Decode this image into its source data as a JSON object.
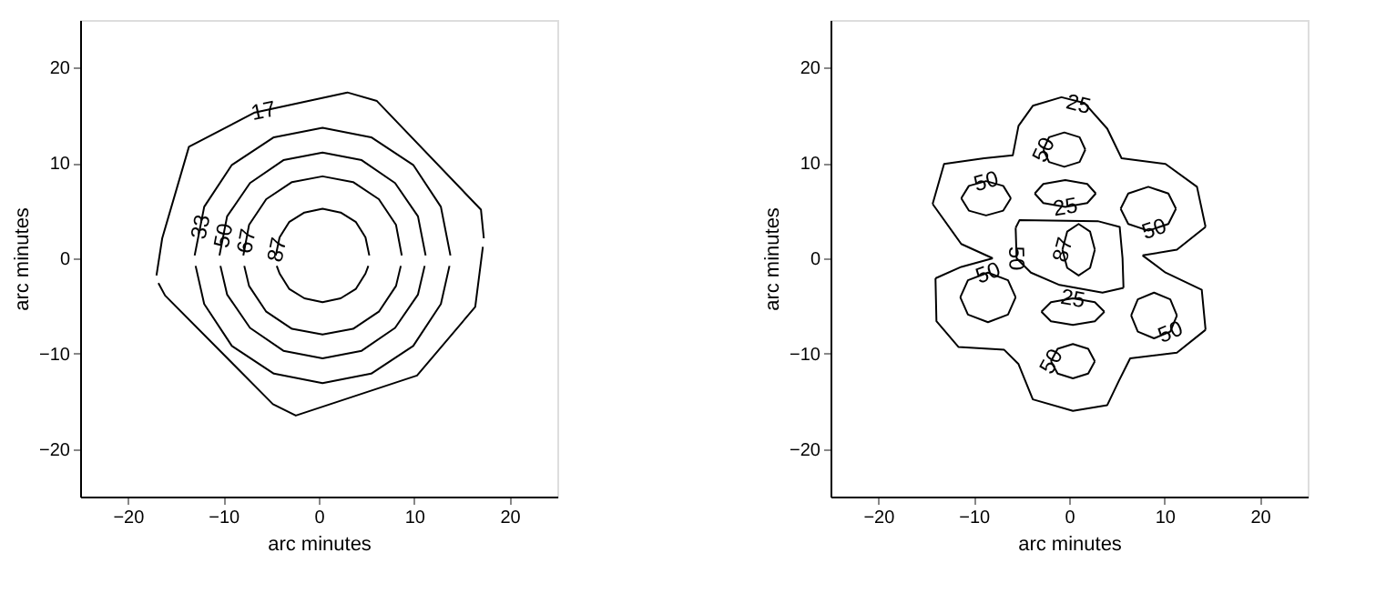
{
  "chart_data": [
    {
      "type": "line",
      "xlabel": "arc minutes",
      "ylabel": "arc minutes",
      "xlim": [
        -25,
        25
      ],
      "ylim": [
        -25,
        25
      ],
      "xticks": [
        -20,
        -10,
        0,
        10,
        20
      ],
      "yticks": [
        -20,
        -10,
        0,
        10,
        20
      ],
      "series": [
        {
          "color": "#000000",
          "x": [
            -17.0,
            -16.4,
            -13.6,
            -6.7,
            3.0,
            6.1,
            17.0,
            17.3
          ],
          "values": [
            -1.8,
            2.1,
            11.7,
            15.3,
            17.4,
            16.5,
            5.1,
            2.1
          ]
        },
        {
          "color": "#000000",
          "x": [
            -16.8,
            -16.1,
            -4.8,
            -2.4,
            10.3,
            16.4,
            17.2
          ],
          "values": [
            -2.6,
            -3.9,
            -15.3,
            -16.5,
            -12.3,
            -5.1,
            1.2
          ]
        },
        {
          "color": "#000000",
          "x": [
            -13.0,
            -12.0,
            -9.1,
            -4.7,
            0.4,
            5.5,
            9.9,
            12.8,
            13.8
          ],
          "values": [
            0.3,
            5.4,
            9.8,
            12.7,
            13.7,
            12.7,
            9.8,
            5.4,
            0.3
          ]
        },
        {
          "color": "#000000",
          "x": [
            -12.9,
            -12.0,
            -9.1,
            -4.7,
            0.4,
            5.5,
            9.9,
            12.8,
            13.7
          ],
          "values": [
            -0.8,
            -4.8,
            -9.2,
            -12.1,
            -13.1,
            -12.1,
            -9.2,
            -4.8,
            -0.8
          ]
        },
        {
          "color": "#000000",
          "x": [
            -10.4,
            -9.6,
            -7.2,
            -3.7,
            0.4,
            4.5,
            8.0,
            10.4,
            11.2
          ],
          "values": [
            0.3,
            4.4,
            7.9,
            10.3,
            11.1,
            10.3,
            7.9,
            4.4,
            0.3
          ]
        },
        {
          "color": "#000000",
          "x": [
            -10.3,
            -9.6,
            -7.2,
            -3.7,
            0.4,
            4.5,
            8.0,
            10.4,
            11.1
          ],
          "values": [
            -0.8,
            -3.8,
            -7.3,
            -9.7,
            -10.5,
            -9.7,
            -7.3,
            -3.8,
            -0.8
          ]
        },
        {
          "color": "#000000",
          "x": [
            -7.9,
            -7.3,
            -5.5,
            -2.8,
            0.4,
            3.6,
            6.3,
            8.1,
            8.7
          ],
          "values": [
            0.3,
            3.5,
            6.2,
            8.0,
            8.6,
            8.0,
            6.2,
            3.5,
            0.3
          ]
        },
        {
          "color": "#000000",
          "x": [
            -7.8,
            -7.3,
            -5.5,
            -2.8,
            0.4,
            3.6,
            6.3,
            8.1,
            8.6
          ],
          "values": [
            -0.8,
            -2.9,
            -5.6,
            -7.4,
            -8.0,
            -7.4,
            -5.6,
            -2.9,
            -0.8
          ]
        },
        {
          "color": "#000000",
          "x": [
            -4.5,
            -4.1,
            -3.1,
            -1.5,
            0.4,
            2.3,
            3.9,
            4.9,
            5.3
          ],
          "values": [
            0.3,
            2.2,
            3.8,
            4.8,
            5.2,
            4.8,
            3.8,
            2.2,
            0.3
          ]
        },
        {
          "color": "#000000",
          "x": [
            -4.4,
            -4.1,
            -3.1,
            -1.5,
            0.4,
            2.3,
            3.9,
            4.9,
            5.2
          ],
          "values": [
            -0.8,
            -1.6,
            -3.2,
            -4.2,
            -4.6,
            -4.2,
            -3.2,
            -1.6,
            -0.8
          ]
        }
      ],
      "annotations": [
        {
          "text": "17",
          "x": -5.8,
          "y": 15.5
        },
        {
          "text": "33",
          "x": -12.4,
          "y": 3.3
        },
        {
          "text": "50",
          "x": -10.0,
          "y": 2.4
        },
        {
          "text": "67",
          "x": -7.6,
          "y": 1.8
        },
        {
          "text": "87",
          "x": -4.4,
          "y": 0.9
        }
      ]
    },
    {
      "type": "line",
      "xlabel": "arc minutes",
      "ylabel": "arc minutes",
      "xlim": [
        -25,
        25
      ],
      "ylim": [
        -25,
        25
      ],
      "xticks": [
        -20,
        -10,
        0,
        10,
        20
      ],
      "yticks": [
        -20,
        -10,
        0,
        10,
        20
      ],
      "series": [
        {
          "color": "#000000",
          "x": [
            -14.3,
            -13.1,
            -8.9,
            -5.9,
            -5.3,
            -3.8,
            -0.8,
            1.6,
            4.0,
            5.5,
            10.1,
            13.4,
            14.3
          ],
          "values": [
            5.7,
            9.9,
            10.5,
            10.8,
            13.9,
            16.0,
            16.9,
            16.3,
            13.6,
            10.5,
            9.9,
            7.5,
            3.3
          ]
        },
        {
          "color": "#000000",
          "x": [
            7.7,
            11.3,
            14.3
          ],
          "values": [
            0.3,
            0.9,
            3.3
          ]
        },
        {
          "color": "#000000",
          "x": [
            7.7,
            10.1,
            13.9,
            14.3
          ],
          "values": [
            0.3,
            -1.5,
            -3.3,
            -7.5
          ]
        },
        {
          "color": "#000000",
          "x": [
            -14.0,
            -13.9,
            -11.6,
            -6.8,
            -5.3,
            -3.8,
            0.4,
            4.0,
            5.2,
            6.4,
            11.3,
            14.3
          ],
          "values": [
            -2.1,
            -6.6,
            -9.3,
            -9.6,
            -11.1,
            -14.8,
            -16.0,
            -15.4,
            -12.9,
            -10.5,
            -9.9,
            -7.5
          ]
        },
        {
          "color": "#000000",
          "x": [
            -14.0,
            -11.3,
            -8.0
          ],
          "values": [
            -2.1,
            -0.9,
            0.0
          ]
        },
        {
          "color": "#000000",
          "x": [
            -14.3,
            -11.3,
            -8.0
          ],
          "values": [
            5.7,
            1.5,
            0.0
          ]
        },
        {
          "color": "#000000",
          "x": [
            -2.7,
            -2.1,
            -0.5,
            1.1,
            1.7
          ],
          "values": [
            11.4,
            12.7,
            13.2,
            12.7,
            11.4
          ]
        },
        {
          "color": "#000000",
          "x": [
            -2.7,
            -2.1,
            -0.5,
            1.1,
            1.7
          ],
          "values": [
            11.4,
            10.1,
            9.6,
            10.1,
            11.4
          ]
        },
        {
          "color": "#000000",
          "x": [
            -11.3,
            -10.5,
            -8.7,
            -6.9,
            -6.1
          ],
          "values": [
            6.3,
            7.6,
            8.1,
            7.6,
            6.3
          ]
        },
        {
          "color": "#000000",
          "x": [
            -11.3,
            -10.5,
            -8.7,
            -6.9,
            -6.1
          ],
          "values": [
            6.3,
            5.0,
            4.5,
            5.0,
            6.3
          ]
        },
        {
          "color": "#000000",
          "x": [
            5.4,
            6.2,
            8.3,
            10.4,
            11.2
          ],
          "values": [
            5.2,
            6.8,
            7.5,
            6.8,
            5.2
          ]
        },
        {
          "color": "#000000",
          "x": [
            5.4,
            6.2,
            8.3,
            10.4,
            11.2
          ],
          "values": [
            5.2,
            3.6,
            2.9,
            3.6,
            5.2
          ]
        },
        {
          "color": "#000000",
          "x": [
            -11.4,
            -10.6,
            -8.5,
            -6.4,
            -5.6
          ],
          "values": [
            -4.1,
            -2.3,
            -1.5,
            -2.3,
            -4.1
          ]
        },
        {
          "color": "#000000",
          "x": [
            -11.4,
            -10.6,
            -8.5,
            -6.4,
            -5.6
          ],
          "values": [
            -4.1,
            -5.9,
            -6.7,
            -5.9,
            -4.1
          ]
        },
        {
          "color": "#000000",
          "x": [
            6.5,
            7.2,
            8.9,
            10.6,
            11.3
          ],
          "values": [
            -6.0,
            -4.3,
            -3.6,
            -4.3,
            -6.0
          ]
        },
        {
          "color": "#000000",
          "x": [
            6.5,
            7.2,
            8.9,
            10.6,
            11.3
          ],
          "values": [
            -6.0,
            -7.7,
            -8.4,
            -7.7,
            -6.0
          ]
        },
        {
          "color": "#000000",
          "x": [
            -1.9,
            -1.2,
            0.4,
            2.0,
            2.7
          ],
          "values": [
            -10.8,
            -9.5,
            -9.0,
            -9.5,
            -10.8
          ]
        },
        {
          "color": "#000000",
          "x": [
            -1.9,
            -1.2,
            0.4,
            2.0,
            2.7
          ],
          "values": [
            -10.8,
            -12.1,
            -12.6,
            -12.1,
            -10.8
          ]
        },
        {
          "color": "#000000",
          "x": [
            -5.6,
            -5.2,
            3.0,
            5.3,
            5.6,
            5.7
          ],
          "values": [
            3.2,
            4.0,
            3.9,
            3.3,
            0.0,
            -3.1
          ]
        },
        {
          "color": "#000000",
          "x": [
            -5.6,
            -5.5,
            -4.0,
            -1.0,
            3.5,
            5.7
          ],
          "values": [
            3.2,
            0.0,
            -1.5,
            -2.8,
            -3.6,
            -3.1
          ]
        },
        {
          "color": "#000000",
          "x": [
            -0.7,
            -0.2,
            1.0,
            2.2,
            2.7
          ],
          "values": [
            0.9,
            2.8,
            3.6,
            2.8,
            0.9
          ]
        },
        {
          "color": "#000000",
          "x": [
            -0.7,
            -0.2,
            1.0,
            2.2,
            2.7
          ],
          "values": [
            0.9,
            -1.0,
            -1.8,
            -1.0,
            0.9
          ]
        },
        {
          "color": "#000000",
          "x": [
            -3.6,
            -2.7,
            -0.4,
            1.9,
            2.8
          ],
          "values": [
            6.8,
            7.8,
            8.2,
            7.8,
            6.8
          ]
        },
        {
          "color": "#000000",
          "x": [
            -3.6,
            -2.7,
            -0.4,
            1.9,
            2.8
          ],
          "values": [
            6.8,
            5.8,
            5.4,
            5.8,
            6.8
          ]
        },
        {
          "color": "#000000",
          "x": [
            -2.9,
            -1.9,
            0.4,
            2.7,
            3.7
          ],
          "values": [
            -5.6,
            -4.6,
            -4.2,
            -4.6,
            -5.6
          ]
        },
        {
          "color": "#000000",
          "x": [
            -2.9,
            -1.9,
            0.4,
            2.7,
            3.7
          ],
          "values": [
            -5.6,
            -6.6,
            -7.0,
            -6.6,
            -5.6
          ]
        }
      ],
      "annotations": [
        {
          "text": "25",
          "x": 1.0,
          "y": 16.2
        },
        {
          "text": "50",
          "x": -2.7,
          "y": 11.4
        },
        {
          "text": "50",
          "x": -8.7,
          "y": 8.1
        },
        {
          "text": "25",
          "x": -0.4,
          "y": 5.4
        },
        {
          "text": "50",
          "x": 8.9,
          "y": 3.1
        },
        {
          "text": "50",
          "x": -5.5,
          "y": 0.0
        },
        {
          "text": "87",
          "x": -0.7,
          "y": 0.9
        },
        {
          "text": "50",
          "x": -8.5,
          "y": -1.5
        },
        {
          "text": "25",
          "x": 0.4,
          "y": -4.2
        },
        {
          "text": "50",
          "x": 10.6,
          "y": -7.7
        },
        {
          "text": "50",
          "x": -1.9,
          "y": -10.8
        }
      ]
    }
  ]
}
